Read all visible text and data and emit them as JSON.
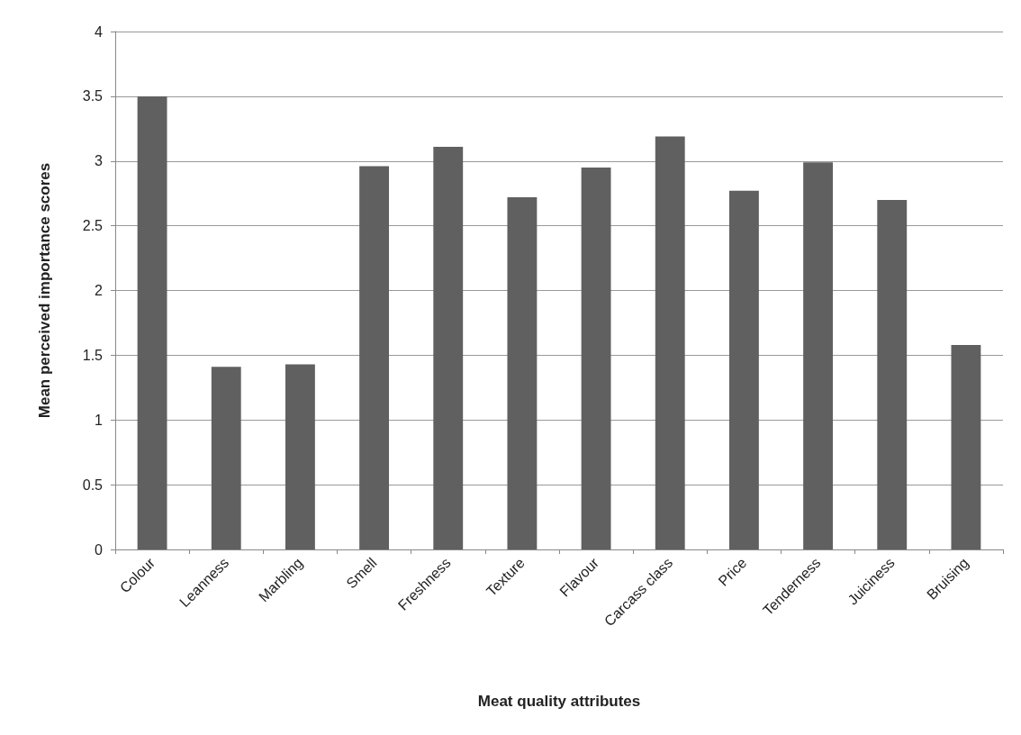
{
  "chart_data": {
    "type": "bar",
    "xlabel": "Meat quality attributes",
    "ylabel": "Mean perceived importance scores",
    "categories": [
      "Colour",
      "Leanness",
      "Marbling",
      "Smell",
      "Freshness",
      "Texture",
      "Flavour",
      "Carcass class",
      "Price",
      "Tenderness",
      "Juiciness",
      "Bruising"
    ],
    "values": [
      3.5,
      1.41,
      1.43,
      2.96,
      3.11,
      2.72,
      2.95,
      3.19,
      2.77,
      2.99,
      2.7,
      1.58
    ],
    "color": "#606060",
    "ylim": [
      0,
      4
    ],
    "yticks": [
      0,
      0.5,
      1,
      1.5,
      2,
      2.5,
      3,
      3.5,
      4
    ],
    "grid": "y"
  }
}
